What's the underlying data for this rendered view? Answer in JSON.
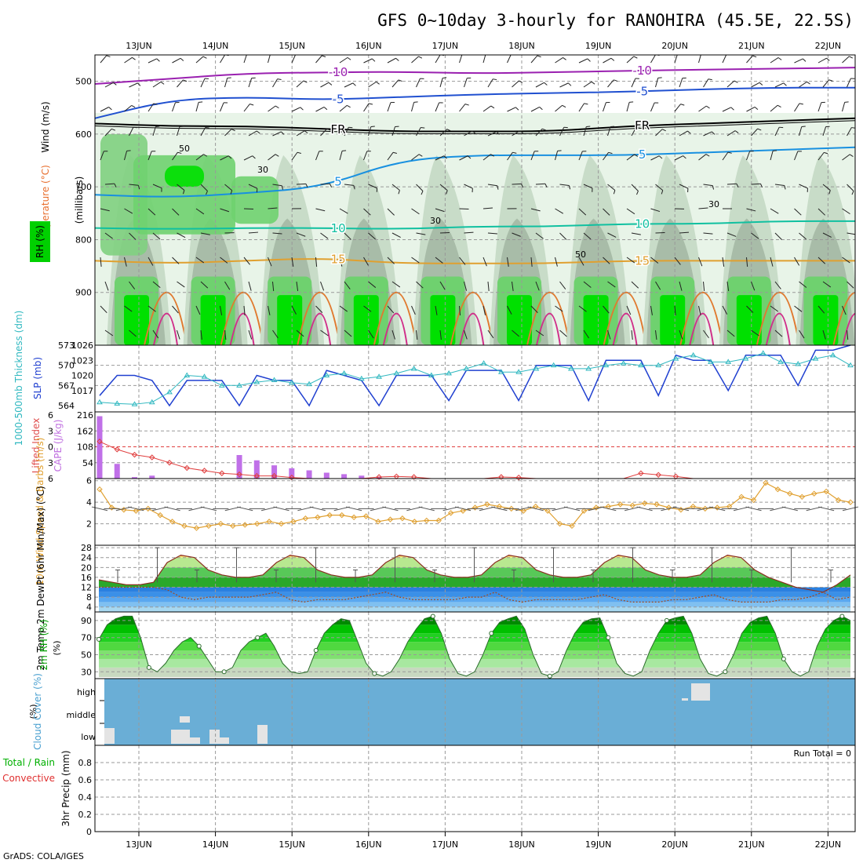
{
  "title": "GFS 0~10day 3-hourly for RANOHIRA (45.5E, 22.5S)",
  "footer": "GrADS: COLA/IGES",
  "dates": [
    "13JUN",
    "14JUN",
    "15JUN",
    "16JUN",
    "17JUN",
    "18JUN",
    "19JUN",
    "20JUN",
    "21JUN",
    "22JUN"
  ],
  "colors": {
    "rh_light": "#e8f4e8",
    "rh_mid": "#c8dcc8",
    "rh_dark": "#a8bca8",
    "rh_green": "#6fd16f",
    "rh_bright": "#00e000",
    "cloud_bg": "#6aaed6",
    "cloud_cell": "#e4e4e4"
  },
  "chart_data": [
    {
      "type": "contour",
      "panel": "upper-air",
      "ylabel": "(millibars)",
      "left_labels": [
        "Wind (m/s)",
        "Temperature (°C)",
        "RH (%)"
      ],
      "yticks": [
        500,
        600,
        700,
        800,
        900
      ],
      "ylim": [
        450,
        1000
      ],
      "contours": [
        {
          "label": "-10",
          "color": "#9a20b0",
          "p": [
            505,
            495,
            485,
            483,
            482,
            485,
            483,
            480,
            478,
            476,
            474
          ]
        },
        {
          "label": "-5",
          "color": "#2050d0",
          "p": [
            570,
            535,
            530,
            535,
            530,
            525,
            522,
            520,
            515,
            512,
            512
          ]
        },
        {
          "label": "FR",
          "color": "#000000",
          "p": [
            580,
            585,
            585,
            590,
            595,
            595,
            595,
            585,
            580,
            575,
            570
          ]
        },
        {
          "label": "5",
          "color": "#1890e0",
          "p": [
            715,
            720,
            712,
            700,
            650,
            640,
            640,
            640,
            635,
            630,
            625
          ]
        },
        {
          "label": "10",
          "color": "#10c0a0",
          "p": [
            778,
            780,
            778,
            778,
            780,
            775,
            775,
            770,
            770,
            765,
            765
          ]
        },
        {
          "label": "15",
          "color": "#e0a030",
          "p": [
            840,
            845,
            840,
            835,
            845,
            845,
            845,
            840,
            840,
            840,
            840
          ]
        }
      ],
      "contour_labels": [
        "-10",
        "-5",
        "FR",
        "5",
        "10",
        "15",
        "30",
        "50"
      ]
    },
    {
      "type": "line",
      "panel": "slp-thickness",
      "ylabel_left": "1000-500mb Thickness (dm)",
      "ylabel_right": "SLP (mb)",
      "yticks_left": [
        564,
        567,
        570,
        573
      ],
      "yticks_right": [
        1017,
        1020,
        1023,
        1026
      ],
      "series": [
        {
          "name": "SLP",
          "unit": "mb",
          "color": "#2040d0",
          "values": [
            1016,
            1020,
            1020,
            1019,
            1014,
            1019,
            1019,
            1019,
            1014,
            1020,
            1019,
            1019,
            1014,
            1021,
            1020,
            1019,
            1014,
            1020,
            1020,
            1020,
            1015,
            1021,
            1021,
            1021,
            1015,
            1022,
            1022,
            1022,
            1015,
            1023,
            1023,
            1023,
            1016,
            1024,
            1023,
            1023,
            1017,
            1024,
            1024,
            1024,
            1018,
            1025,
            1025,
            1026
          ]
        },
        {
          "name": "Thickness",
          "unit": "dm",
          "color": "#30b8c0",
          "values": [
            564.5,
            564.3,
            564.2,
            564.5,
            566,
            568.5,
            568.3,
            567,
            567,
            567.5,
            567.8,
            567.4,
            567.2,
            568.5,
            568.8,
            568,
            568.3,
            568.8,
            569.5,
            568.5,
            568.8,
            569.5,
            570.3,
            569,
            569,
            569.5,
            570,
            569.5,
            569.5,
            570,
            570.3,
            570,
            570,
            571,
            571.5,
            570.5,
            570.5,
            571,
            571.8,
            570.5,
            570.2,
            571,
            571.5,
            570
          ]
        }
      ]
    },
    {
      "type": "bar",
      "panel": "cape-li",
      "ylabel_left": "Lifted Index",
      "ylabel_right": "CAPE (J/kg)",
      "yticks_left": [
        -6,
        -3,
        0,
        3,
        6
      ],
      "yticks_right": [
        54,
        108,
        162,
        216
      ],
      "cape": [
        212,
        50,
        5,
        10,
        0,
        0,
        0,
        0,
        80,
        62,
        45,
        35,
        28,
        20,
        15,
        10,
        5,
        0,
        0,
        0,
        0,
        0,
        0,
        0,
        0,
        0,
        0,
        0,
        0,
        0,
        0,
        0,
        0,
        0,
        0,
        0,
        0,
        0,
        0,
        0,
        0,
        0,
        0,
        0
      ],
      "lifted_index": [
        -1,
        0.5,
        1.5,
        2,
        3,
        4,
        4.5,
        5,
        5.2,
        5.5,
        5.5,
        5.8,
        6,
        6,
        6,
        6,
        5.7,
        5.6,
        5.7,
        6,
        6,
        6,
        6,
        5.7,
        5.8,
        6,
        6,
        6,
        6,
        6,
        6,
        5,
        5.3,
        5.6,
        6,
        6,
        6,
        6,
        6,
        6,
        6,
        6,
        6,
        6
      ]
    },
    {
      "type": "line",
      "panel": "wind10m",
      "ylabel": "10m Wind Speed & Barbs (m/s)",
      "yticks": [
        2,
        4,
        6
      ],
      "ylim": [
        0,
        6
      ],
      "values": [
        5.2,
        3.5,
        3.3,
        3.2,
        3.4,
        2.8,
        2.2,
        1.8,
        1.6,
        1.8,
        2,
        1.8,
        1.9,
        2,
        2.2,
        2,
        2.2,
        2.5,
        2.6,
        2.8,
        2.8,
        2.6,
        2.7,
        2.2,
        2.4,
        2.5,
        2.2,
        2.3,
        2.3,
        3,
        3.2,
        3.5,
        3.8,
        3.6,
        3.4,
        3.2,
        3.6,
        3.2,
        2,
        1.8,
        3.2,
        3.5,
        3.6,
        3.8,
        3.7,
        3.9,
        3.8,
        3.5,
        3.3,
        3.6,
        3.4,
        3.5,
        3.6,
        4.5,
        4.2,
        5.8,
        5.2,
        4.8,
        4.5,
        4.8,
        5,
        4.2,
        4
      ]
    },
    {
      "type": "area",
      "panel": "temp2m",
      "ylabel": "2m Temp 2m DewPt (6hr Min/Max) (°C)",
      "yticks": [
        4,
        8,
        12,
        16,
        20,
        24,
        28
      ],
      "ylim": [
        2,
        29
      ],
      "temp": [
        15,
        14,
        13,
        13,
        14,
        22,
        25,
        24,
        19,
        17,
        16,
        16,
        17,
        22,
        25,
        24,
        19,
        17,
        16,
        16,
        17,
        22,
        25,
        24,
        19,
        17,
        16,
        16,
        17,
        22,
        25,
        24,
        19,
        17,
        16,
        16,
        17,
        22,
        25,
        24,
        19,
        17,
        16,
        16,
        17,
        22,
        25,
        24,
        19,
        16,
        14,
        12,
        11,
        10,
        13,
        17
      ],
      "dewpt": [
        12,
        12,
        12,
        12,
        12,
        11,
        8,
        7,
        8,
        8,
        8,
        8,
        9,
        10,
        7,
        6,
        7,
        7,
        7,
        8,
        9,
        10,
        8,
        7,
        7,
        7,
        7,
        8,
        8,
        10,
        7,
        6,
        7,
        7,
        7,
        7,
        8,
        9,
        7,
        6,
        6,
        6,
        7,
        7,
        8,
        9,
        7,
        6,
        6,
        6,
        7,
        7,
        8,
        10,
        7,
        8
      ]
    },
    {
      "type": "area",
      "panel": "rh2m",
      "ylabel": "2m RH (%)",
      "yticks": [
        30,
        50,
        70,
        90
      ],
      "ylim": [
        22,
        100
      ],
      "values": [
        68,
        85,
        92,
        95,
        95,
        70,
        35,
        30,
        40,
        55,
        65,
        70,
        60,
        45,
        30,
        30,
        35,
        55,
        65,
        70,
        75,
        60,
        40,
        30,
        28,
        30,
        55,
        75,
        85,
        92,
        90,
        65,
        40,
        28,
        25,
        30,
        45,
        65,
        80,
        92,
        95,
        75,
        45,
        28,
        25,
        30,
        50,
        75,
        88,
        92,
        95,
        80,
        50,
        28,
        25,
        30,
        55,
        75,
        88,
        92,
        93,
        70,
        40,
        28,
        25,
        30,
        55,
        75,
        90,
        93,
        95,
        75,
        45,
        28,
        25,
        30,
        50,
        75,
        88,
        93,
        95,
        75,
        45,
        30,
        25,
        30,
        60,
        80,
        90,
        95,
        90
      ]
    },
    {
      "type": "heatmap",
      "panel": "cloud",
      "ylabel": "Cloud Cover (%)",
      "levels": [
        "high",
        "middle",
        "low"
      ]
    },
    {
      "type": "bar",
      "panel": "precip",
      "ylabel": "3hr Precip (mm)",
      "left_labels": [
        "Total / Rain",
        "Convective"
      ],
      "yticks": [
        0,
        0.2,
        0.4,
        0.6,
        0.8
      ],
      "ylim": [
        0,
        1
      ],
      "run_total": "Run Total = 0"
    }
  ]
}
